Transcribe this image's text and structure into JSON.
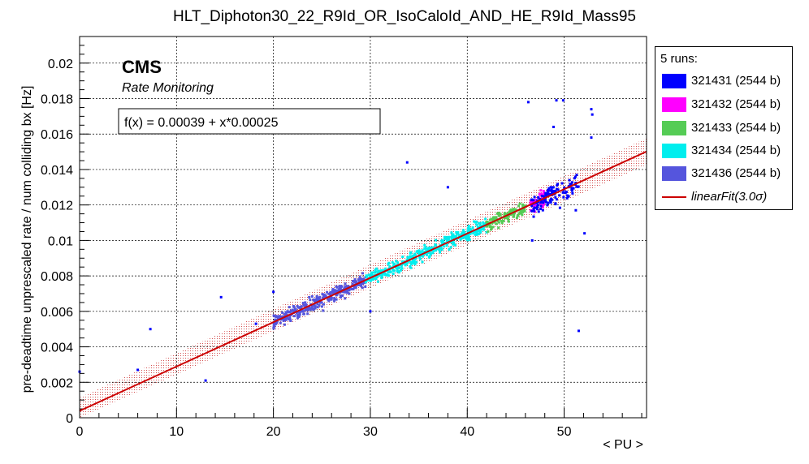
{
  "chart_data": {
    "type": "scatter",
    "title": "HLT_Diphoton30_22_R9Id_OR_IsoCaloId_AND_HE_R9Id_Mass95",
    "xlabel": "< PU >",
    "ylabel": "pre-deadtime unprescaled rate / num colliding bx [Hz]",
    "xlim": [
      0,
      58.5
    ],
    "ylim": [
      0,
      0.0215
    ],
    "x_ticks": [
      "0",
      "10",
      "20",
      "30",
      "40",
      "50"
    ],
    "y_ticks": [
      "0",
      "0.002",
      "0.004",
      "0.006",
      "0.008",
      "0.01",
      "0.012",
      "0.014",
      "0.016",
      "0.018",
      "0.02"
    ],
    "grid": true,
    "experiment_label": "CMS",
    "sub_label": "Rate Monitoring",
    "fit_formula": "f(x) = 0.00039 + x*0.00025",
    "fit": {
      "intercept": 0.00039,
      "slope": 0.00025,
      "band_halfwidth": 0.00075,
      "color": "#cc0000"
    },
    "legend": {
      "title": "5 runs:",
      "placement": "right",
      "entries": [
        {
          "label": "321431 (2544 b)",
          "color": "#0000ff"
        },
        {
          "label": "321432 (2544 b)",
          "color": "#ff00ff"
        },
        {
          "label": "321433 (2544 b)",
          "color": "#55cc55"
        },
        {
          "label": "321434 (2544 b)",
          "color": "#00eeee"
        },
        {
          "label": "321436 (2544 b)",
          "color": "#5555dd"
        }
      ],
      "fit_label_pre": "linearFit(3.0",
      "fit_label_sigma": "σ",
      "fit_label_post": ")"
    },
    "series": [
      {
        "name": "321436 (2544 b)",
        "color": "#5555dd",
        "cluster": {
          "x_range": [
            20,
            29.5
          ],
          "n": 330,
          "noise": 0.00035
        },
        "x": [],
        "y": []
      },
      {
        "name": "321434 (2544 b)",
        "color": "#00eeee",
        "cluster": {
          "x_range": [
            29.5,
            42
          ],
          "n": 380,
          "noise": 0.00032
        },
        "x": [],
        "y": []
      },
      {
        "name": "321433 (2544 b)",
        "color": "#55cc55",
        "cluster": {
          "x_range": [
            42,
            46
          ],
          "n": 120,
          "noise": 0.00032
        },
        "x": [],
        "y": []
      },
      {
        "name": "321432 (2544 b)",
        "color": "#ff00ff",
        "cluster": {
          "x_range": [
            46.5,
            48
          ],
          "n": 50,
          "noise": 0.0004
        },
        "x": [],
        "y": []
      },
      {
        "name": "321431 (2544 b)",
        "color": "#0000ff",
        "cluster": {
          "x_range": [
            46.5,
            51.5
          ],
          "n": 110,
          "noise": 0.0005
        },
        "x": [
          0.0,
          6.0,
          7.3,
          13.0,
          14.6,
          18.2,
          20.0,
          30.0,
          33.8,
          38.0,
          46.3,
          46.7,
          48.9,
          49.2,
          49.9,
          51.2,
          51.5,
          52.1,
          52.8,
          52.9,
          52.8
        ],
        "y": [
          0.0026,
          0.0027,
          0.005,
          0.0021,
          0.0068,
          0.0053,
          0.0071,
          0.006,
          0.0144,
          0.013,
          0.0178,
          0.01,
          0.0164,
          0.0179,
          0.0179,
          0.0117,
          0.0049,
          0.0104,
          0.0158,
          0.0171,
          0.0174
        ]
      }
    ]
  }
}
